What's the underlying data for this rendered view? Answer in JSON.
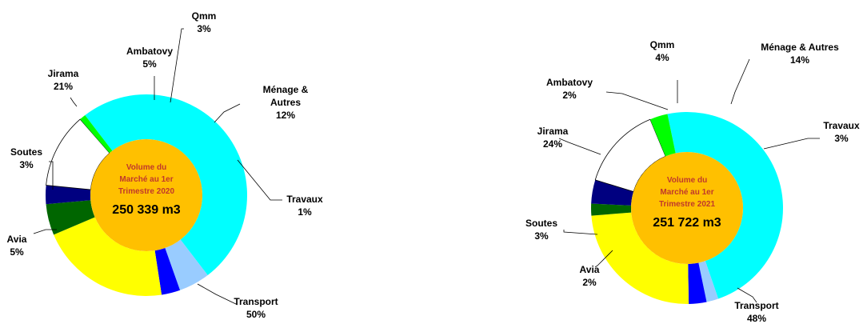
{
  "colors": {
    "Transport": "#00ffff",
    "Avia": "#99ccff",
    "Soutes": "#0000ff",
    "Jirama": "#ffff00",
    "Ambatovy": "#006600",
    "Qmm": "#000080",
    "Ménage & Autres": "#ffffff",
    "Travaux": "#00ff00",
    "center": "#ffc000"
  },
  "chart_data": [
    {
      "type": "pie",
      "center_text": [
        "Volume du",
        "Marché au 1er",
        "Trimestre 2020"
      ],
      "center_value": "250 339 m3",
      "slices": [
        {
          "name": "Transport",
          "value": 50,
          "label": "50%"
        },
        {
          "name": "Avia",
          "value": 5,
          "label": "5%"
        },
        {
          "name": "Soutes",
          "value": 3,
          "label": "3%"
        },
        {
          "name": "Jirama",
          "value": 21,
          "label": "21%"
        },
        {
          "name": "Ambatovy",
          "value": 5,
          "label": "5%"
        },
        {
          "name": "Qmm",
          "value": 3,
          "label": "3%"
        },
        {
          "name": "Ménage & Autres",
          "value": 12,
          "label": "12%"
        },
        {
          "name": "Travaux",
          "value": 1,
          "label": "1%"
        }
      ]
    },
    {
      "type": "pie",
      "center_text": [
        "Volume du",
        "Marché au 1er",
        "Trimestre 2021"
      ],
      "center_value": "251 722 m3",
      "slices": [
        {
          "name": "Transport",
          "value": 48,
          "label": "48%"
        },
        {
          "name": "Avia",
          "value": 2,
          "label": "2%"
        },
        {
          "name": "Soutes",
          "value": 3,
          "label": "3%"
        },
        {
          "name": "Jirama",
          "value": 24,
          "label": "24%"
        },
        {
          "name": "Ambatovy",
          "value": 2,
          "label": "2%"
        },
        {
          "name": "Qmm",
          "value": 4,
          "label": "4%"
        },
        {
          "name": "Ménage & Autres",
          "value": 14,
          "label": "14%"
        },
        {
          "name": "Travaux",
          "value": 3,
          "label": "3%"
        }
      ]
    }
  ]
}
